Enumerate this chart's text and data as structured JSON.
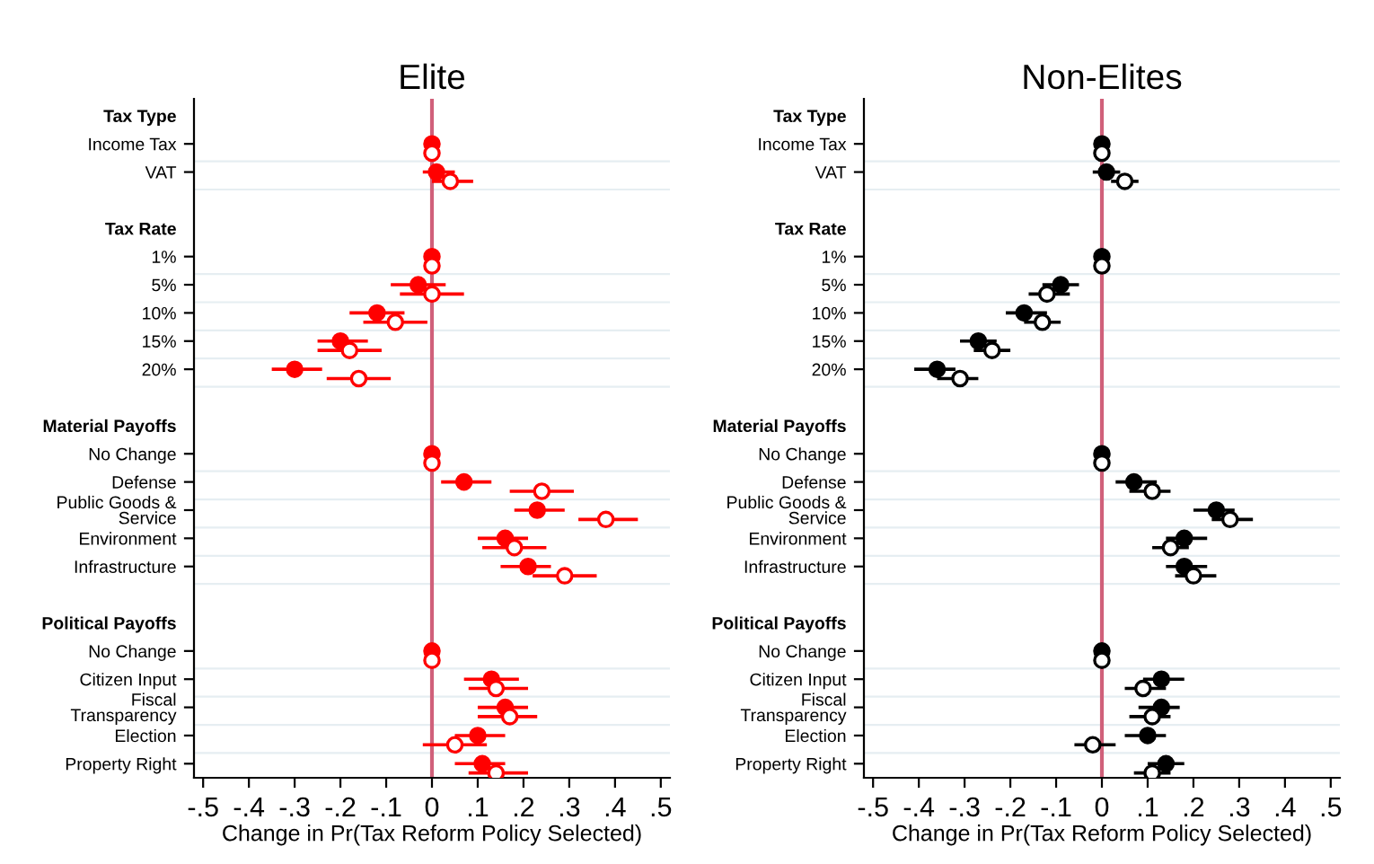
{
  "chart_data": [
    {
      "type": "scatter",
      "orientation": "horizontal",
      "title": "Elite",
      "xlabel": "Change in Pr(Tax Reform Policy Selected)",
      "categories": [
        "Tax Type",
        "Income Tax",
        "VAT",
        null,
        "Tax Rate",
        "1%",
        "5%",
        "10%",
        "15%",
        "20%",
        null,
        "Material Payoffs",
        "No Change",
        "Defense",
        "Public Goods &\nService",
        "Environment",
        "Infrastructure",
        null,
        "Political Payoffs",
        "No Change",
        "Citizen Input",
        "Fiscal\nTransparency",
        "Election",
        "Property Right"
      ],
      "xlim": [
        -0.52,
        0.52
      ],
      "xticks": [
        {
          "value": -0.5,
          "label": "-.5"
        },
        {
          "value": -0.4,
          "label": "-.4"
        },
        {
          "value": -0.3,
          "label": "-.3"
        },
        {
          "value": -0.2,
          "label": "-.2"
        },
        {
          "value": -0.1,
          "label": "-.1"
        },
        0,
        {
          "value": 0.1,
          "label": ".1"
        },
        {
          "value": 0.2,
          "label": ".2"
        },
        {
          "value": 0.3,
          "label": ".3"
        },
        {
          "value": 0.4,
          "label": ".4"
        },
        {
          "value": 0.5,
          "label": ".5"
        }
      ],
      "marker": "circle",
      "legend": false,
      "ref_lines": [
        {
          "axis": "x",
          "value": 0,
          "color": "#d0607a"
        }
      ],
      "series": [
        {
          "color": "#ff0000",
          "values": [
            null,
            0,
            0.01,
            null,
            null,
            0,
            -0.03,
            -0.12,
            -0.2,
            -0.3,
            null,
            null,
            0,
            0.07,
            0.23,
            0.16,
            0.21,
            null,
            null,
            0,
            0.13,
            0.16,
            0.1,
            0.11
          ],
          "errors": [
            null,
            null,
            [
              -0.02,
              0.05
            ],
            null,
            null,
            null,
            [
              -0.09,
              0.03
            ],
            [
              -0.18,
              -0.06
            ],
            [
              -0.25,
              -0.14
            ],
            [
              -0.35,
              -0.24
            ],
            null,
            null,
            null,
            [
              0.02,
              0.13
            ],
            [
              0.18,
              0.29
            ],
            [
              0.1,
              0.21
            ],
            [
              0.15,
              0.26
            ],
            null,
            null,
            null,
            [
              0.07,
              0.19
            ],
            [
              0.1,
              0.21
            ],
            [
              0.05,
              0.16
            ],
            [
              0.05,
              0.16
            ]
          ]
        },
        {
          "color": "#ff0000",
          "values": [
            null,
            0,
            0.04,
            null,
            null,
            0,
            0,
            -0.08,
            -0.18,
            -0.16,
            null,
            null,
            0,
            0.24,
            0.38,
            0.18,
            0.29,
            null,
            null,
            0,
            0.14,
            0.17,
            0.05,
            0.14
          ],
          "errors": [
            null,
            null,
            [
              0,
              0.09
            ],
            null,
            null,
            null,
            [
              -0.07,
              0.07
            ],
            [
              -0.15,
              -0.01
            ],
            [
              -0.25,
              -0.11
            ],
            [
              -0.23,
              -0.09
            ],
            null,
            null,
            null,
            [
              0.17,
              0.31
            ],
            [
              0.32,
              0.45
            ],
            [
              0.11,
              0.25
            ],
            [
              0.22,
              0.36
            ],
            null,
            null,
            null,
            [
              0.08,
              0.21
            ],
            [
              0.1,
              0.23
            ],
            [
              -0.02,
              0.12
            ],
            [
              0.08,
              0.21
            ]
          ]
        }
      ]
    },
    {
      "type": "scatter",
      "orientation": "horizontal",
      "title": "Non-Elites",
      "xlabel": "Change in Pr(Tax Reform Policy Selected)",
      "categories": [
        "Tax Type",
        "Income Tax",
        "VAT",
        null,
        "Tax Rate",
        "1%",
        "5%",
        "10%",
        "15%",
        "20%",
        null,
        "Material Payoffs",
        "No Change",
        "Defense",
        "Public Goods &\nService",
        "Environment",
        "Infrastructure",
        null,
        "Political Payoffs",
        "No Change",
        "Citizen Input",
        "Fiscal\nTransparency",
        "Election",
        "Property Right"
      ],
      "xlim": [
        -0.52,
        0.52
      ],
      "xticks": [
        {
          "value": -0.5,
          "label": "-.5"
        },
        {
          "value": -0.4,
          "label": "-.4"
        },
        {
          "value": -0.3,
          "label": "-.3"
        },
        {
          "value": -0.2,
          "label": "-.2"
        },
        {
          "value": -0.1,
          "label": "-.1"
        },
        0,
        {
          "value": 0.1,
          "label": ".1"
        },
        {
          "value": 0.2,
          "label": ".2"
        },
        {
          "value": 0.3,
          "label": ".3"
        },
        {
          "value": 0.4,
          "label": ".4"
        },
        {
          "value": 0.5,
          "label": ".5"
        }
      ],
      "marker": "circle",
      "legend": false,
      "ref_lines": [
        {
          "axis": "x",
          "value": 0,
          "color": "#d0607a"
        }
      ],
      "series": [
        {
          "color": "#000000",
          "values": [
            null,
            0,
            0.01,
            null,
            null,
            0,
            -0.09,
            -0.17,
            -0.27,
            -0.36,
            null,
            null,
            0,
            0.07,
            0.25,
            0.18,
            0.18,
            null,
            null,
            0,
            0.13,
            0.13,
            0.1,
            0.14
          ],
          "errors": [
            null,
            null,
            [
              -0.02,
              0.04
            ],
            null,
            null,
            null,
            [
              -0.13,
              -0.05
            ],
            [
              -0.21,
              -0.12
            ],
            [
              -0.31,
              -0.23
            ],
            [
              -0.41,
              -0.32
            ],
            null,
            null,
            null,
            [
              0.03,
              0.12
            ],
            [
              0.2,
              0.29
            ],
            [
              0.14,
              0.23
            ],
            [
              0.14,
              0.23
            ],
            null,
            null,
            null,
            [
              0.09,
              0.18
            ],
            [
              0.08,
              0.17
            ],
            [
              0.05,
              0.14
            ],
            [
              0.1,
              0.18
            ]
          ]
        },
        {
          "color": "#000000",
          "values": [
            null,
            0,
            0.05,
            null,
            null,
            0,
            -0.12,
            -0.13,
            -0.24,
            -0.31,
            null,
            null,
            0,
            0.11,
            0.28,
            0.15,
            0.2,
            null,
            null,
            0,
            0.09,
            0.11,
            -0.02,
            0.11
          ],
          "errors": [
            null,
            null,
            [
              0.02,
              0.08
            ],
            null,
            null,
            null,
            [
              -0.16,
              -0.07
            ],
            [
              -0.17,
              -0.09
            ],
            [
              -0.28,
              -0.2
            ],
            [
              -0.36,
              -0.27
            ],
            null,
            null,
            null,
            [
              0.06,
              0.15
            ],
            [
              0.24,
              0.33
            ],
            [
              0.11,
              0.19
            ],
            [
              0.16,
              0.25
            ],
            null,
            null,
            null,
            [
              0.05,
              0.14
            ],
            [
              0.06,
              0.15
            ],
            [
              -0.06,
              0.03
            ],
            [
              0.07,
              0.15
            ]
          ]
        }
      ]
    }
  ]
}
